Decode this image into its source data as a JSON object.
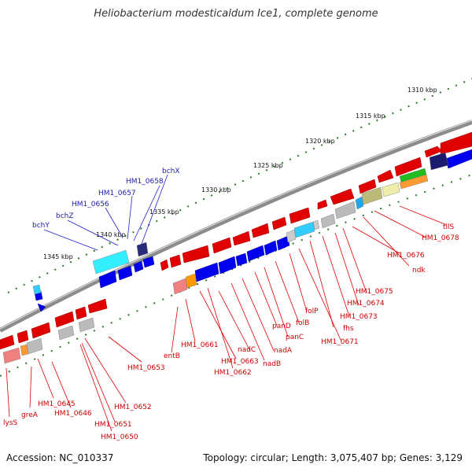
{
  "title": "Heliobacterium modesticaldum Ice1, complete genome",
  "footer": {
    "accession": "Accession: NC_010337",
    "summary": "Topology: circular; Length: 3,075,407 bp; Genes: 3,129"
  },
  "colors": {
    "plus_strand": "#e00000",
    "minus_strand": "#0000ee",
    "backbone": "#8c8c8c",
    "tick_dots": "#2a7a2a",
    "label_blue": "#1a1aa8",
    "label_red": "#cc0000"
  },
  "kbp_ticks": [
    "1310 kbp",
    "1315 kbp",
    "1320 kbp",
    "1325 kbp",
    "1330 kbp",
    "1335 kbp",
    "1340 kbp",
    "1345 kbp"
  ],
  "upper_labels": [
    "bchX",
    "HM1_0658",
    "HM1_0657",
    "HM1_0656",
    "bchZ",
    "bchY"
  ],
  "lower_labels": [
    "lysS",
    "greA",
    "HM1_0645",
    "HM1_0646",
    "HM1_0651",
    "HM1_0650",
    "HM1_0652",
    "HM1_0653",
    "entB",
    "HM1_0661",
    "HM1_0663",
    "HM1_0662",
    "nadC",
    "nadB",
    "nadA",
    "panD",
    "panC",
    "folB",
    "folP",
    "HM1_0671",
    "fhs",
    "HM1_0673",
    "HM1_0674",
    "HM1_0675",
    "ndk",
    "HM1_0676",
    "HM1_0678",
    "tilS"
  ]
}
